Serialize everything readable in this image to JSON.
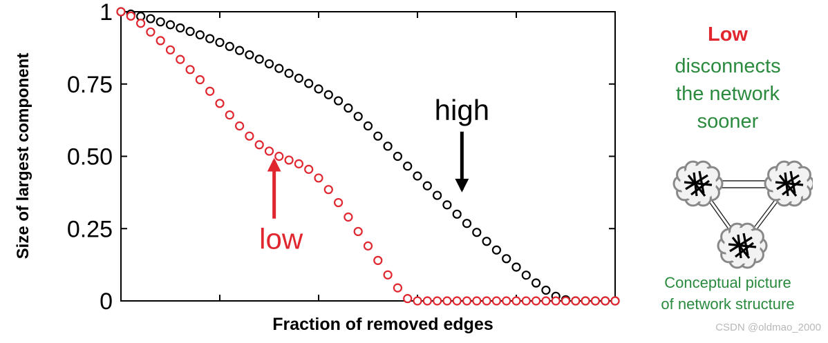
{
  "chart_data": {
    "type": "scatter",
    "title": "",
    "xlabel": "Fraction of removed edges",
    "ylabel": "Size of largest component",
    "xlim": [
      0,
      1
    ],
    "ylim": [
      0,
      1
    ],
    "yticks": [
      {
        "value": 0,
        "label": "0"
      },
      {
        "value": 0.25,
        "label": "0.25"
      },
      {
        "value": 0.5,
        "label": "0.50"
      },
      {
        "value": 0.75,
        "label": "0.75"
      },
      {
        "value": 1,
        "label": "1"
      }
    ],
    "xticks": [
      0,
      0.2,
      0.4,
      0.6,
      0.8,
      1
    ],
    "grid": false,
    "legend": "none",
    "series": [
      {
        "name": "high",
        "color": "#000000",
        "marker": "open-circle",
        "x": [
          0,
          0.02,
          0.04,
          0.06,
          0.08,
          0.1,
          0.12,
          0.14,
          0.16,
          0.18,
          0.2,
          0.22,
          0.24,
          0.26,
          0.28,
          0.3,
          0.32,
          0.34,
          0.36,
          0.38,
          0.4,
          0.42,
          0.44,
          0.46,
          0.48,
          0.5,
          0.52,
          0.54,
          0.56,
          0.58,
          0.6,
          0.62,
          0.64,
          0.66,
          0.68,
          0.7,
          0.72,
          0.74,
          0.76,
          0.78,
          0.8,
          0.82,
          0.84,
          0.86,
          0.88,
          0.9,
          0.92,
          0.94,
          0.96,
          0.98,
          1
        ],
        "y": [
          1.0,
          0.992,
          0.984,
          0.976,
          0.965,
          0.955,
          0.944,
          0.932,
          0.92,
          0.907,
          0.894,
          0.88,
          0.866,
          0.851,
          0.836,
          0.82,
          0.804,
          0.787,
          0.77,
          0.752,
          0.733,
          0.713,
          0.692,
          0.667,
          0.638,
          0.605,
          0.57,
          0.535,
          0.5,
          0.466,
          0.432,
          0.398,
          0.365,
          0.332,
          0.3,
          0.268,
          0.237,
          0.206,
          0.176,
          0.146,
          0.117,
          0.089,
          0.062,
          0.037,
          0.016,
          0.004,
          0.0,
          0.0,
          0.0,
          0.0,
          0.0
        ]
      },
      {
        "name": "low",
        "color": "#e0262f",
        "marker": "open-circle",
        "x": [
          0,
          0.02,
          0.04,
          0.06,
          0.08,
          0.1,
          0.12,
          0.14,
          0.16,
          0.18,
          0.2,
          0.22,
          0.24,
          0.26,
          0.28,
          0.3,
          0.32,
          0.34,
          0.36,
          0.38,
          0.4,
          0.42,
          0.44,
          0.46,
          0.48,
          0.5,
          0.52,
          0.54,
          0.56,
          0.58,
          0.6,
          0.62,
          0.64,
          0.66,
          0.68,
          0.7,
          0.72,
          0.74,
          0.76,
          0.78,
          0.8,
          0.82,
          0.84,
          0.86,
          0.88,
          0.9,
          0.92,
          0.94,
          0.96,
          0.98,
          1
        ],
        "y": [
          1.0,
          0.985,
          0.96,
          0.93,
          0.9,
          0.868,
          0.835,
          0.8,
          0.765,
          0.725,
          0.683,
          0.643,
          0.605,
          0.57,
          0.54,
          0.518,
          0.5,
          0.487,
          0.474,
          0.455,
          0.425,
          0.385,
          0.34,
          0.29,
          0.24,
          0.19,
          0.14,
          0.09,
          0.045,
          0.008,
          0.0,
          0.0,
          0.0,
          0.0,
          0.0,
          0.0,
          0.0,
          0.0,
          0.0,
          0.0,
          0.0,
          0.0,
          0.0,
          0.0,
          0.0,
          0.0,
          0.0,
          0.0,
          0.0,
          0.0,
          0.0
        ]
      }
    ],
    "annotations": [
      {
        "text": "high",
        "color": "#000000",
        "arrow_to": [
          0.69,
          0.38
        ]
      },
      {
        "text": "low",
        "color": "#e0262f",
        "arrow_to": [
          0.31,
          0.49
        ]
      }
    ]
  },
  "side_panel": {
    "headline": "Low",
    "description": [
      "disconnects",
      "the network",
      "sooner"
    ],
    "caption": [
      "Conceptual picture",
      "of network structure"
    ]
  },
  "watermark": "CSDN @oldmao_2000"
}
